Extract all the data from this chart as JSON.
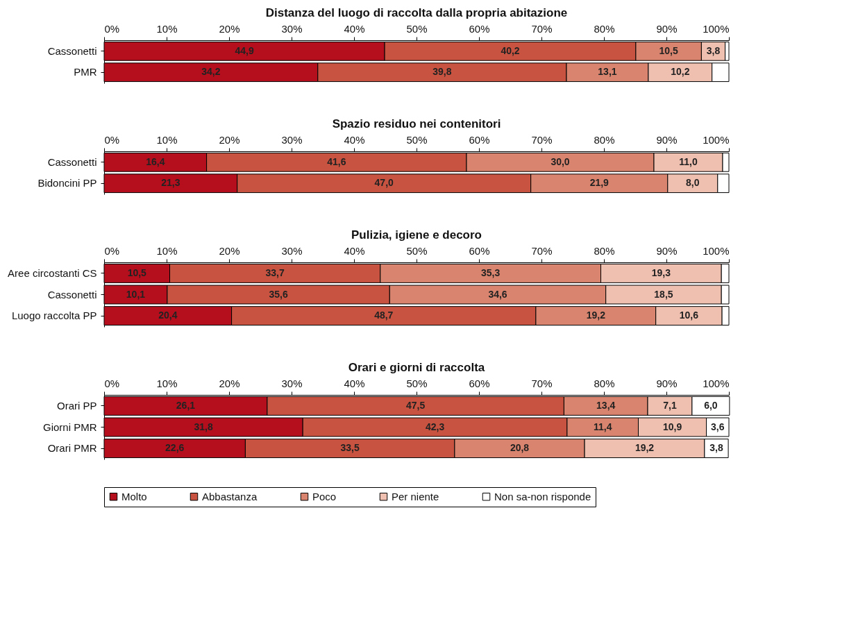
{
  "chart_data": [
    {
      "type": "bar",
      "orientation": "horizontal",
      "stacked": true,
      "title": "Distanza del luogo di raccolta dalla propria abitazione",
      "categories": [
        "Cassonetti",
        "PMR"
      ],
      "xlim": [
        0,
        100
      ],
      "xticks": [
        {
          "value": 0,
          "label": "0%"
        },
        {
          "value": 10,
          "label": "10%"
        },
        {
          "value": 20,
          "label": "20%"
        },
        {
          "value": 30,
          "label": "30%"
        },
        {
          "value": 40,
          "label": "40%"
        },
        {
          "value": 50,
          "label": "50%"
        },
        {
          "value": 60,
          "label": "60%"
        },
        {
          "value": 70,
          "label": "70%"
        },
        {
          "value": 80,
          "label": "80%"
        },
        {
          "value": 90,
          "label": "90%"
        },
        {
          "value": 100,
          "label": "100%"
        }
      ],
      "grid": false,
      "legend": false,
      "series": [
        {
          "color": "#b50f1e",
          "values": [
            44.9,
            34.2
          ],
          "value_labels": [
            "44,9",
            "34,2"
          ]
        },
        {
          "color": "#c85340",
          "values": [
            40.2,
            39.8
          ],
          "value_labels": [
            "40,2",
            "39,8"
          ]
        },
        {
          "color": "#d9846e",
          "values": [
            10.5,
            13.1
          ],
          "value_labels": [
            "10,5",
            "13,1"
          ]
        },
        {
          "color": "#efbfb0",
          "values": [
            3.8,
            10.2
          ],
          "value_labels": [
            "3,8",
            "10,2"
          ]
        },
        {
          "color": "#ffffff",
          "values": [
            0.6,
            2.7
          ],
          "value_labels": [
            null,
            null
          ]
        }
      ]
    },
    {
      "type": "bar",
      "orientation": "horizontal",
      "stacked": true,
      "title": "Spazio residuo nei contenitori",
      "categories": [
        "Cassonetti",
        "Bidoncini PP"
      ],
      "xlim": [
        0,
        100
      ],
      "xticks": [
        {
          "value": 0,
          "label": "0%"
        },
        {
          "value": 10,
          "label": "10%"
        },
        {
          "value": 20,
          "label": "20%"
        },
        {
          "value": 30,
          "label": "30%"
        },
        {
          "value": 40,
          "label": "40%"
        },
        {
          "value": 50,
          "label": "50%"
        },
        {
          "value": 60,
          "label": "60%"
        },
        {
          "value": 70,
          "label": "70%"
        },
        {
          "value": 80,
          "label": "80%"
        },
        {
          "value": 90,
          "label": "90%"
        },
        {
          "value": 100,
          "label": "100%"
        }
      ],
      "grid": false,
      "legend": false,
      "series": [
        {
          "color": "#b50f1e",
          "values": [
            16.4,
            21.3
          ],
          "value_labels": [
            "16,4",
            "21,3"
          ]
        },
        {
          "color": "#c85340",
          "values": [
            41.6,
            47.0
          ],
          "value_labels": [
            "41,6",
            "47,0"
          ]
        },
        {
          "color": "#d9846e",
          "values": [
            30.0,
            21.9
          ],
          "value_labels": [
            "30,0",
            "21,9"
          ]
        },
        {
          "color": "#efbfb0",
          "values": [
            11.0,
            8.0
          ],
          "value_labels": [
            "11,0",
            "8,0"
          ]
        },
        {
          "color": "#ffffff",
          "values": [
            1.0,
            1.8
          ],
          "value_labels": [
            null,
            null
          ]
        }
      ]
    },
    {
      "type": "bar",
      "orientation": "horizontal",
      "stacked": true,
      "title": "Pulizia, igiene e decoro",
      "categories": [
        "Aree circostanti CS",
        "Cassonetti",
        "Luogo raccolta PP"
      ],
      "xlim": [
        0,
        100
      ],
      "xticks": [
        {
          "value": 0,
          "label": "0%"
        },
        {
          "value": 10,
          "label": "10%"
        },
        {
          "value": 20,
          "label": "20%"
        },
        {
          "value": 30,
          "label": "30%"
        },
        {
          "value": 40,
          "label": "40%"
        },
        {
          "value": 50,
          "label": "50%"
        },
        {
          "value": 60,
          "label": "60%"
        },
        {
          "value": 70,
          "label": "70%"
        },
        {
          "value": 80,
          "label": "80%"
        },
        {
          "value": 90,
          "label": "90%"
        },
        {
          "value": 100,
          "label": "100%"
        }
      ],
      "grid": false,
      "legend": false,
      "series": [
        {
          "color": "#b50f1e",
          "values": [
            10.5,
            10.1,
            20.4
          ],
          "value_labels": [
            "10,5",
            "10,1",
            "20,4"
          ]
        },
        {
          "color": "#c85340",
          "values": [
            33.7,
            35.6,
            48.7
          ],
          "value_labels": [
            "33,7",
            "35,6",
            "48,7"
          ]
        },
        {
          "color": "#d9846e",
          "values": [
            35.3,
            34.6,
            19.2
          ],
          "value_labels": [
            "35,3",
            "34,6",
            "19,2"
          ]
        },
        {
          "color": "#efbfb0",
          "values": [
            19.3,
            18.5,
            10.6
          ],
          "value_labels": [
            "19,3",
            "18,5",
            "10,6"
          ]
        },
        {
          "color": "#ffffff",
          "values": [
            1.2,
            1.2,
            1.1
          ],
          "value_labels": [
            null,
            null,
            null
          ]
        }
      ]
    },
    {
      "type": "bar",
      "orientation": "horizontal",
      "stacked": true,
      "title": "Orari e giorni di raccolta",
      "categories": [
        "Orari PP",
        "Giorni PMR",
        "Orari PMR"
      ],
      "xlim": [
        0,
        100
      ],
      "xticks": [
        {
          "value": 0,
          "label": "0%"
        },
        {
          "value": 10,
          "label": "10%"
        },
        {
          "value": 20,
          "label": "20%"
        },
        {
          "value": 30,
          "label": "30%"
        },
        {
          "value": 40,
          "label": "40%"
        },
        {
          "value": 50,
          "label": "50%"
        },
        {
          "value": 60,
          "label": "60%"
        },
        {
          "value": 70,
          "label": "70%"
        },
        {
          "value": 80,
          "label": "80%"
        },
        {
          "value": 90,
          "label": "90%"
        },
        {
          "value": 100,
          "label": "100%"
        }
      ],
      "grid": false,
      "legend": "bottom",
      "series": [
        {
          "name": "Molto",
          "color": "#b50f1e",
          "values": [
            26.1,
            31.8,
            22.6
          ],
          "value_labels": [
            "26,1",
            "31,8",
            "22,6"
          ]
        },
        {
          "name": "Abbastanza",
          "color": "#c85340",
          "values": [
            47.5,
            42.3,
            33.5
          ],
          "value_labels": [
            "47,5",
            "42,3",
            "33,5"
          ]
        },
        {
          "name": "Poco",
          "color": "#d9846e",
          "values": [
            13.4,
            11.4,
            20.8
          ],
          "value_labels": [
            "13,4",
            "11,4",
            "20,8"
          ]
        },
        {
          "name": "Per niente",
          "color": "#efbfb0",
          "values": [
            7.1,
            10.9,
            19.2
          ],
          "value_labels": [
            "7,1",
            "10,9",
            "19,2"
          ]
        },
        {
          "name": "Non sa-non risponde",
          "color": "#ffffff",
          "values": [
            6.0,
            3.6,
            3.8
          ],
          "value_labels": [
            "6,0",
            "3,6",
            "3,8"
          ]
        }
      ]
    }
  ]
}
